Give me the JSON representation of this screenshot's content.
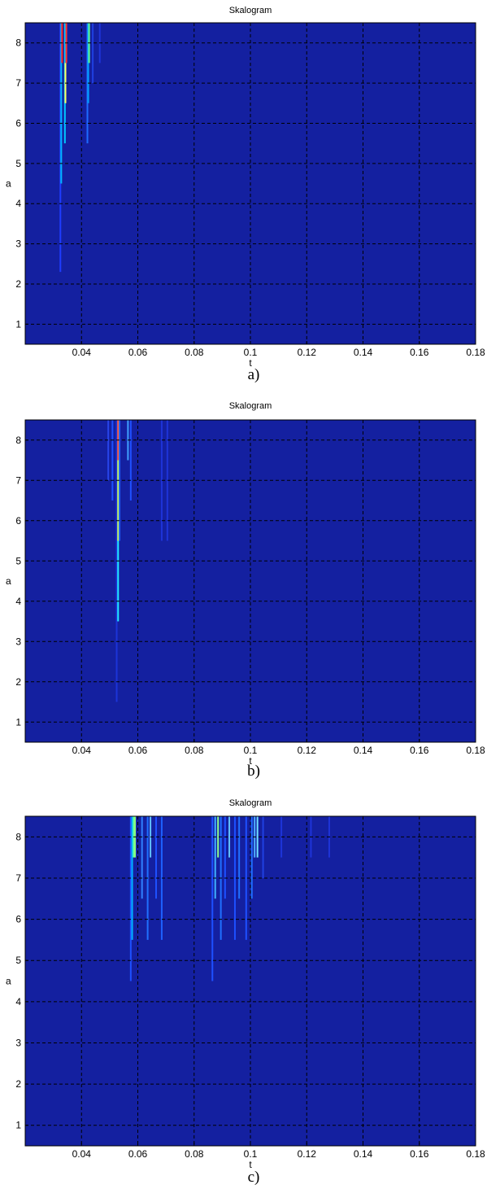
{
  "colors": {
    "background": "#1420a0",
    "grid": "#000000",
    "colormap": [
      "#00008f",
      "#0000ff",
      "#00ffff",
      "#ffff00",
      "#ff0000",
      "#800000"
    ]
  },
  "chart_data": [
    {
      "type": "heatmap",
      "caption": "a)",
      "title": "Skalogram",
      "xlabel": "t",
      "ylabel": "a",
      "xlim": [
        0.02,
        0.18
      ],
      "ylim": [
        0.5,
        8.5
      ],
      "xticks": [
        "0.04",
        "0.06",
        "0.08",
        "0.1",
        "0.12",
        "0.14",
        "0.16",
        "0.18"
      ],
      "yticks": [
        "1",
        "2",
        "3",
        "4",
        "5",
        "6",
        "7",
        "8"
      ],
      "grid": true,
      "streaks": [
        {
          "t": 0.0325,
          "a_min": 2.3,
          "a_max": 8.5,
          "color": "#1e3cff"
        },
        {
          "t": 0.0328,
          "a_min": 4.5,
          "a_max": 8.5,
          "color": "#00b4ff"
        },
        {
          "t": 0.0331,
          "a_min": 7.5,
          "a_max": 8.5,
          "color": "#ff2020"
        },
        {
          "t": 0.0341,
          "a_min": 5.5,
          "a_max": 8.5,
          "color": "#00c8ff"
        },
        {
          "t": 0.0343,
          "a_min": 6.5,
          "a_max": 7.5,
          "color": "#ffff60"
        },
        {
          "t": 0.0346,
          "a_min": 7.5,
          "a_max": 8.5,
          "color": "#ff3030"
        },
        {
          "t": 0.0421,
          "a_min": 5.5,
          "a_max": 8.5,
          "color": "#1e6cff"
        },
        {
          "t": 0.0424,
          "a_min": 6.5,
          "a_max": 8.5,
          "color": "#00a0ff"
        },
        {
          "t": 0.0427,
          "a_min": 7.5,
          "a_max": 8.5,
          "color": "#60ff90"
        },
        {
          "t": 0.044,
          "a_min": 7.0,
          "a_max": 8.5,
          "color": "#2040e0"
        },
        {
          "t": 0.0465,
          "a_min": 7.5,
          "a_max": 8.5,
          "color": "#1e34d8"
        }
      ]
    },
    {
      "type": "heatmap",
      "caption": "b)",
      "title": "Skalogram",
      "xlabel": "t",
      "ylabel": "a",
      "xlim": [
        0.02,
        0.18
      ],
      "ylim": [
        0.5,
        8.5
      ],
      "xticks": [
        "0.04",
        "0.06",
        "0.08",
        "0.1",
        "0.12",
        "0.14",
        "0.16",
        "0.18"
      ],
      "yticks": [
        "1",
        "2",
        "3",
        "4",
        "5",
        "6",
        "7",
        "8"
      ],
      "grid": true,
      "streaks": [
        {
          "t": 0.0495,
          "a_min": 7.0,
          "a_max": 8.5,
          "color": "#2844e8"
        },
        {
          "t": 0.051,
          "a_min": 6.5,
          "a_max": 8.5,
          "color": "#1e50ff"
        },
        {
          "t": 0.0525,
          "a_min": 1.5,
          "a_max": 8.5,
          "color": "#1c34d8"
        },
        {
          "t": 0.053,
          "a_min": 3.5,
          "a_max": 5.5,
          "color": "#20e8ff"
        },
        {
          "t": 0.053,
          "a_min": 5.5,
          "a_max": 7.5,
          "color": "#c8ff60"
        },
        {
          "t": 0.053,
          "a_min": 7.5,
          "a_max": 8.5,
          "color": "#ff6040"
        },
        {
          "t": 0.0535,
          "a_min": 5.5,
          "a_max": 8.5,
          "color": "#2060ff"
        },
        {
          "t": 0.0565,
          "a_min": 7.5,
          "a_max": 8.5,
          "color": "#40a0ff"
        },
        {
          "t": 0.0575,
          "a_min": 6.5,
          "a_max": 8.5,
          "color": "#2050ff"
        },
        {
          "t": 0.0685,
          "a_min": 5.5,
          "a_max": 8.5,
          "color": "#1e34d8"
        },
        {
          "t": 0.0705,
          "a_min": 5.5,
          "a_max": 8.5,
          "color": "#1e34d8"
        }
      ]
    },
    {
      "type": "heatmap",
      "caption": "c)",
      "title": "Skalogram",
      "xlabel": "t",
      "ylabel": "a",
      "xlim": [
        0.02,
        0.18
      ],
      "ylim": [
        0.5,
        8.5
      ],
      "xticks": [
        "0.04",
        "0.06",
        "0.08",
        "0.1",
        "0.12",
        "0.14",
        "0.16",
        "0.18"
      ],
      "yticks": [
        "1",
        "2",
        "3",
        "4",
        "5",
        "6",
        "7",
        "8"
      ],
      "grid": true,
      "streaks": [
        {
          "t": 0.0575,
          "a_min": 4.5,
          "a_max": 8.5,
          "color": "#1e50ff"
        },
        {
          "t": 0.058,
          "a_min": 5.5,
          "a_max": 8.5,
          "color": "#00b0ff"
        },
        {
          "t": 0.0585,
          "a_min": 7.5,
          "a_max": 8.5,
          "color": "#60ffa0"
        },
        {
          "t": 0.059,
          "a_min": 7.5,
          "a_max": 8.5,
          "color": "#90ff80"
        },
        {
          "t": 0.0615,
          "a_min": 6.5,
          "a_max": 8.5,
          "color": "#3080ff"
        },
        {
          "t": 0.0635,
          "a_min": 5.5,
          "a_max": 8.5,
          "color": "#2070ff"
        },
        {
          "t": 0.0645,
          "a_min": 7.5,
          "a_max": 8.5,
          "color": "#60c0ff"
        },
        {
          "t": 0.0665,
          "a_min": 6.5,
          "a_max": 8.5,
          "color": "#1e50ff"
        },
        {
          "t": 0.0685,
          "a_min": 5.5,
          "a_max": 8.5,
          "color": "#1e60ff"
        },
        {
          "t": 0.0865,
          "a_min": 4.5,
          "a_max": 8.5,
          "color": "#1e50ff"
        },
        {
          "t": 0.0875,
          "a_min": 6.5,
          "a_max": 8.5,
          "color": "#40b0ff"
        },
        {
          "t": 0.0885,
          "a_min": 7.5,
          "a_max": 8.5,
          "color": "#90ff90"
        },
        {
          "t": 0.0895,
          "a_min": 5.5,
          "a_max": 8.5,
          "color": "#2070ff"
        },
        {
          "t": 0.091,
          "a_min": 6.5,
          "a_max": 8.5,
          "color": "#1e50ff"
        },
        {
          "t": 0.0925,
          "a_min": 7.5,
          "a_max": 8.5,
          "color": "#60c0ff"
        },
        {
          "t": 0.0945,
          "a_min": 5.5,
          "a_max": 8.5,
          "color": "#1e50ff"
        },
        {
          "t": 0.096,
          "a_min": 6.5,
          "a_max": 8.5,
          "color": "#2070ff"
        },
        {
          "t": 0.0985,
          "a_min": 5.5,
          "a_max": 8.5,
          "color": "#1e50ff"
        },
        {
          "t": 0.1005,
          "a_min": 6.5,
          "a_max": 8.5,
          "color": "#2070ff"
        },
        {
          "t": 0.1015,
          "a_min": 7.5,
          "a_max": 8.5,
          "color": "#50b0ff"
        },
        {
          "t": 0.1025,
          "a_min": 7.5,
          "a_max": 8.5,
          "color": "#70e0ff"
        },
        {
          "t": 0.1045,
          "a_min": 7.0,
          "a_max": 8.5,
          "color": "#2040e0"
        },
        {
          "t": 0.111,
          "a_min": 7.5,
          "a_max": 8.5,
          "color": "#1e34d8"
        },
        {
          "t": 0.1215,
          "a_min": 7.5,
          "a_max": 8.5,
          "color": "#1e34d8"
        },
        {
          "t": 0.128,
          "a_min": 7.5,
          "a_max": 8.5,
          "color": "#1e34d8"
        }
      ]
    }
  ]
}
